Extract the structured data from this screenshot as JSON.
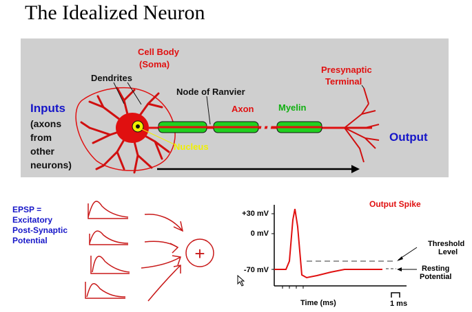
{
  "title": "The Idealized Neuron",
  "neuron": {
    "cell_body": "Cell Body",
    "soma": "(Soma)",
    "dendrites": "Dendrites",
    "node_of_ranvier": "Node of Ranvier",
    "axon": "Axon",
    "myelin": "Myelin",
    "presynaptic": "Presynaptic",
    "terminal": "Terminal",
    "nucleus": "Nucleus",
    "inputs": "Inputs",
    "inputs_note": [
      "(axons",
      "from",
      "other",
      "neurons)"
    ],
    "output": "Output"
  },
  "epsp": {
    "lines": [
      "EPSP =",
      "Excitatory",
      "Post-Synaptic",
      "Potential"
    ],
    "sum_symbol": "+"
  },
  "spike_chart": {
    "title": "Output Spike",
    "y_ticks": [
      "+30 mV",
      "0 mV",
      "-70 mV"
    ],
    "threshold": [
      "Threshold",
      "Level"
    ],
    "resting": [
      "Resting",
      "Potential"
    ],
    "x_label": "Time (ms)",
    "scale": "1 ms"
  },
  "colors": {
    "red": "#e01010",
    "myelin": "#20d020",
    "panel": "#cfcfcf",
    "blue": "#1616c8"
  }
}
